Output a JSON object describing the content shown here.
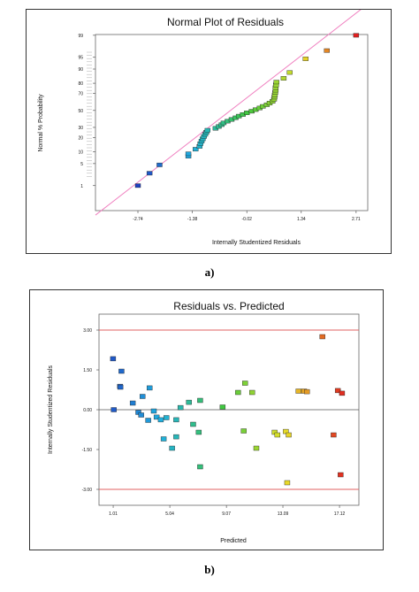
{
  "captions": {
    "a": "a)",
    "b": "b)"
  },
  "colors": {
    "reference_line_pink": "#f080c0",
    "limit_line_red": "#e06060",
    "zero_line": "#555555",
    "low": "#2040c0",
    "high": "#e02020"
  },
  "chart_data": [
    {
      "type": "scatter",
      "title": "Normal Plot of Residuals",
      "xlabel": "Internally Studentized Residuals",
      "ylabel": "Normal % Probability",
      "xlim": [
        -3.8,
        3.0
      ],
      "x_ticks": [
        "-2.74",
        "-1.38",
        "-0.02",
        "1.34",
        "2.71"
      ],
      "y_ticks": [
        "1",
        "5",
        "10",
        "20",
        "30",
        "50",
        "70",
        "80",
        "90",
        "95",
        "99"
      ],
      "grid": false,
      "reference_line": {
        "x": [
          -3.8,
          3.0
        ],
        "y": [
          0.06,
          99.95
        ]
      },
      "points": [
        {
          "x": -2.74,
          "y": 1.0
        },
        {
          "x": -2.45,
          "y": 2.6
        },
        {
          "x": -2.2,
          "y": 4.6
        },
        {
          "x": -1.48,
          "y": 7.8
        },
        {
          "x": -1.48,
          "y": 9.0
        },
        {
          "x": -1.3,
          "y": 11.5
        },
        {
          "x": -1.2,
          "y": 13.3
        },
        {
          "x": -1.18,
          "y": 15.2
        },
        {
          "x": -1.15,
          "y": 17.1
        },
        {
          "x": -1.12,
          "y": 19.0
        },
        {
          "x": -1.09,
          "y": 21.0
        },
        {
          "x": -1.06,
          "y": 23.0
        },
        {
          "x": -1.03,
          "y": 25.0
        },
        {
          "x": -1.0,
          "y": 27.0
        },
        {
          "x": -0.8,
          "y": 29.0
        },
        {
          "x": -0.72,
          "y": 31.0
        },
        {
          "x": -0.65,
          "y": 33.0
        },
        {
          "x": -0.6,
          "y": 35.0
        },
        {
          "x": -0.5,
          "y": 37.0
        },
        {
          "x": -0.4,
          "y": 39.0
        },
        {
          "x": -0.3,
          "y": 41.0
        },
        {
          "x": -0.22,
          "y": 43.0
        },
        {
          "x": -0.12,
          "y": 45.0
        },
        {
          "x": -0.02,
          "y": 47.0
        },
        {
          "x": 0.1,
          "y": 49.0
        },
        {
          "x": 0.2,
          "y": 51.0
        },
        {
          "x": 0.3,
          "y": 53.0
        },
        {
          "x": 0.38,
          "y": 55.0
        },
        {
          "x": 0.48,
          "y": 57.0
        },
        {
          "x": 0.55,
          "y": 59.0
        },
        {
          "x": 0.62,
          "y": 61.0
        },
        {
          "x": 0.66,
          "y": 63.5
        },
        {
          "x": 0.67,
          "y": 66.0
        },
        {
          "x": 0.68,
          "y": 68.5
        },
        {
          "x": 0.69,
          "y": 71.0
        },
        {
          "x": 0.7,
          "y": 73.5
        },
        {
          "x": 0.7,
          "y": 76.0
        },
        {
          "x": 0.71,
          "y": 78.5
        },
        {
          "x": 0.72,
          "y": 81.0
        },
        {
          "x": 0.9,
          "y": 84.0
        },
        {
          "x": 1.05,
          "y": 88.0
        },
        {
          "x": 1.45,
          "y": 94.5
        },
        {
          "x": 1.98,
          "y": 96.8
        },
        {
          "x": 2.71,
          "y": 99.0
        }
      ]
    },
    {
      "type": "scatter",
      "title": "Residuals vs. Predicted",
      "xlabel": "Predicted",
      "ylabel": "Internally Studentized Residuals",
      "xlim": [
        0.0,
        18.5
      ],
      "ylim": [
        -3.6,
        3.6
      ],
      "x_ticks": [
        "1.01",
        "5.04",
        "9.07",
        "13.09",
        "17.12"
      ],
      "y_ticks": [
        "3.00",
        "1.50",
        "0.00",
        "-1.50",
        "-3.00"
      ],
      "grid": false,
      "limit_lines": [
        3.0,
        -3.0
      ],
      "zero_line": 0.0,
      "points": [
        {
          "x": 1.0,
          "y": 1.92
        },
        {
          "x": 1.05,
          "y": 0.0
        },
        {
          "x": 1.6,
          "y": 1.45
        },
        {
          "x": 1.5,
          "y": 0.88
        },
        {
          "x": 1.52,
          "y": 0.85
        },
        {
          "x": 2.4,
          "y": 0.25
        },
        {
          "x": 2.8,
          "y": -0.1
        },
        {
          "x": 3.0,
          "y": -0.2
        },
        {
          "x": 3.1,
          "y": 0.5
        },
        {
          "x": 3.5,
          "y": -0.4
        },
        {
          "x": 3.6,
          "y": 0.82
        },
        {
          "x": 3.9,
          "y": -0.05
        },
        {
          "x": 4.1,
          "y": -0.28
        },
        {
          "x": 4.4,
          "y": -0.38
        },
        {
          "x": 4.6,
          "y": -1.1
        },
        {
          "x": 4.8,
          "y": -0.3
        },
        {
          "x": 5.2,
          "y": -1.45
        },
        {
          "x": 5.5,
          "y": -1.02
        },
        {
          "x": 5.5,
          "y": -0.38
        },
        {
          "x": 5.8,
          "y": 0.08
        },
        {
          "x": 6.4,
          "y": 0.28
        },
        {
          "x": 6.7,
          "y": -0.55
        },
        {
          "x": 7.1,
          "y": -0.85
        },
        {
          "x": 7.2,
          "y": 0.35
        },
        {
          "x": 7.2,
          "y": -2.15
        },
        {
          "x": 8.8,
          "y": 0.1
        },
        {
          "x": 9.9,
          "y": 0.65
        },
        {
          "x": 10.3,
          "y": -0.8
        },
        {
          "x": 10.4,
          "y": 1.0
        },
        {
          "x": 10.9,
          "y": 0.65
        },
        {
          "x": 11.2,
          "y": -1.45
        },
        {
          "x": 12.5,
          "y": -0.85
        },
        {
          "x": 12.7,
          "y": -0.95
        },
        {
          "x": 13.3,
          "y": -0.82
        },
        {
          "x": 13.5,
          "y": -0.95
        },
        {
          "x": 13.4,
          "y": -2.75
        },
        {
          "x": 14.2,
          "y": 0.7
        },
        {
          "x": 14.6,
          "y": 0.7
        },
        {
          "x": 14.8,
          "y": 0.68
        },
        {
          "x": 15.9,
          "y": 2.75
        },
        {
          "x": 16.7,
          "y": -0.95
        },
        {
          "x": 17.0,
          "y": 0.72
        },
        {
          "x": 17.3,
          "y": 0.62
        },
        {
          "x": 17.2,
          "y": -2.45
        }
      ]
    }
  ]
}
